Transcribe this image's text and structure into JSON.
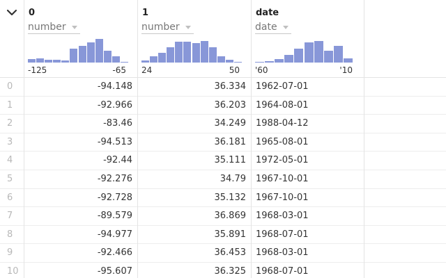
{
  "columns": [
    {
      "name": "0",
      "type": "number",
      "range_min": "-125",
      "range_max": "-65",
      "histogram": [
        0.14,
        0.18,
        0.12,
        0.1,
        0.08,
        0.56,
        0.66,
        0.8,
        0.94,
        0.48,
        0.24,
        0.04
      ]
    },
    {
      "name": "1",
      "type": "number",
      "range_min": "24",
      "range_max": "50",
      "histogram": [
        0.08,
        0.24,
        0.38,
        0.62,
        0.84,
        0.82,
        0.78,
        0.86,
        0.6,
        0.24,
        0.12,
        0.04
      ]
    },
    {
      "name": "date",
      "type": "date",
      "range_min": "'60",
      "range_max": "'10",
      "histogram": [
        0.04,
        0.06,
        0.14,
        0.3,
        0.56,
        0.8,
        0.86,
        0.46,
        0.66,
        0.18
      ]
    }
  ],
  "rows": [
    {
      "index": "0",
      "c0": "-94.148",
      "c1": "36.334",
      "c2": "1962-07-01"
    },
    {
      "index": "1",
      "c0": "-92.966",
      "c1": "36.203",
      "c2": "1964-08-01"
    },
    {
      "index": "2",
      "c0": "-83.46",
      "c1": "34.249",
      "c2": "1988-04-12"
    },
    {
      "index": "3",
      "c0": "-94.513",
      "c1": "36.181",
      "c2": "1965-08-01"
    },
    {
      "index": "4",
      "c0": "-92.44",
      "c1": "35.111",
      "c2": "1972-05-01"
    },
    {
      "index": "5",
      "c0": "-92.276",
      "c1": "34.79",
      "c2": "1967-10-01"
    },
    {
      "index": "6",
      "c0": "-92.728",
      "c1": "35.132",
      "c2": "1967-10-01"
    },
    {
      "index": "7",
      "c0": "-89.579",
      "c1": "36.869",
      "c2": "1968-03-01"
    },
    {
      "index": "8",
      "c0": "-94.977",
      "c1": "35.891",
      "c2": "1968-07-01"
    },
    {
      "index": "9",
      "c0": "-92.466",
      "c1": "36.453",
      "c2": "1968-03-01"
    },
    {
      "index": "10",
      "c0": "-95.607",
      "c1": "36.325",
      "c2": "1968-07-01"
    }
  ],
  "colors": {
    "histogram_bar": "#8897d8",
    "grid_line": "#e4e4e4",
    "index_text": "#b8b8b8"
  },
  "icons": {
    "toggle": "chevron-down-icon",
    "type_dropdown": "caret-down-icon"
  }
}
